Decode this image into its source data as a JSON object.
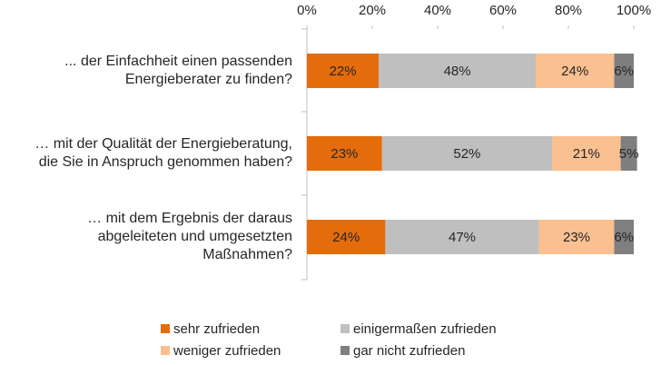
{
  "chart_data": {
    "type": "stacked-bar-horizontal",
    "categories": [
      "... der Einfachheit einen passenden Energieberater zu finden?",
      "… mit der Qualität der Energieberatung, die Sie in Anspruch genommen haben?",
      "… mit dem Ergebnis der daraus abgeleiteten und umgesetzten Maßnahmen?"
    ],
    "series": [
      {
        "name": "sehr zufrieden",
        "color": "#e46c0a",
        "values": [
          22,
          23,
          24
        ],
        "value_labels": [
          "22%",
          "23%",
          "24%"
        ]
      },
      {
        "name": "einigermaßen zufrieden",
        "color": "#bfbfbf",
        "values": [
          48,
          52,
          47
        ],
        "value_labels": [
          "48%",
          "52%",
          "47%"
        ]
      },
      {
        "name": "weniger zufrieden",
        "color": "#fac090",
        "values": [
          24,
          21,
          23
        ],
        "value_labels": [
          "24%",
          "21%",
          "23%"
        ]
      },
      {
        "name": "gar nicht zufrieden",
        "color": "#7f7f7f",
        "values": [
          6,
          5,
          6
        ],
        "value_labels": [
          "6%",
          "5%",
          "6%"
        ]
      }
    ],
    "xlim": [
      0,
      100
    ],
    "xticks": [
      {
        "value": 0,
        "label": "0%"
      },
      {
        "value": 20,
        "label": "20%"
      },
      {
        "value": 40,
        "label": "40%"
      },
      {
        "value": 60,
        "label": "60%"
      },
      {
        "value": 80,
        "label": "80%"
      },
      {
        "value": 100,
        "label": "100%"
      }
    ]
  }
}
